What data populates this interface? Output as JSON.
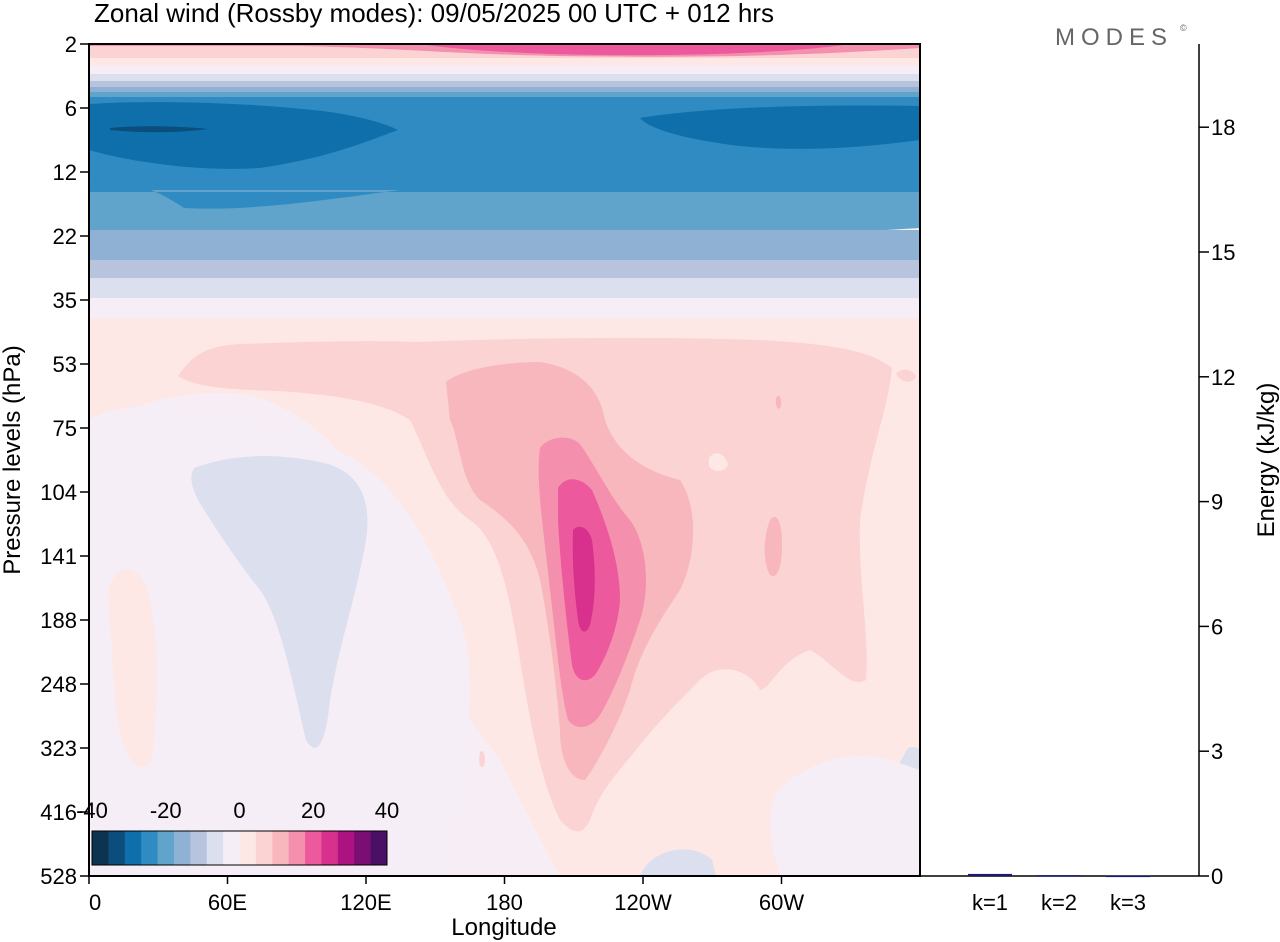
{
  "title": "Zonal wind (Rossby modes):  09/05/2025  00 UTC  + 012 hrs",
  "logo_text": "MODES",
  "logo_mark": "©",
  "chart_data": [
    {
      "type": "heatmap",
      "name": "zonal-wind-cross-section",
      "xlabel": "Longitude",
      "ylabel": "Pressure levels (hPa)",
      "x_ticks": [
        {
          "lon": 0,
          "label": "0"
        },
        {
          "lon": 60,
          "label": "60E"
        },
        {
          "lon": 120,
          "label": "120E"
        },
        {
          "lon": 180,
          "label": "180"
        },
        {
          "lon": 240,
          "label": "120W"
        },
        {
          "lon": 300,
          "label": "60W"
        }
      ],
      "xlim": [
        0,
        360
      ],
      "y_ticks": [
        "2",
        "6",
        "12",
        "22",
        "35",
        "53",
        "75",
        "104",
        "141",
        "188",
        "248",
        "323",
        "416",
        "528"
      ],
      "colorbar": {
        "tick_labels": [
          "-40",
          "-20",
          "0",
          "20",
          "40"
        ],
        "range": [
          -40,
          40
        ],
        "colors": [
          "#0c3350",
          "#0b4d7c",
          "#0e6fab",
          "#2f8bc2",
          "#60a3cb",
          "#8fb2d4",
          "#b8c3de",
          "#dcdfee",
          "#f6eef6",
          "#fde8e6",
          "#fbd3d3",
          "#f8b7bd",
          "#f48fae",
          "#ec5a9d",
          "#d8308d",
          "#ad1380",
          "#7a0e72",
          "#4a1066"
        ]
      }
    },
    {
      "type": "bar",
      "name": "rossby-mode-energy",
      "categories": [
        "k=1",
        "k=2",
        "k=3"
      ],
      "values": [
        0.05,
        0.02,
        0.01
      ],
      "ylabel": "Energy (kJ/kg)",
      "ylim": [
        0,
        20
      ],
      "y_ticks": [
        "0",
        "3",
        "6",
        "9",
        "12",
        "15",
        "18"
      ],
      "bar_color": "#1a1a6e"
    }
  ]
}
